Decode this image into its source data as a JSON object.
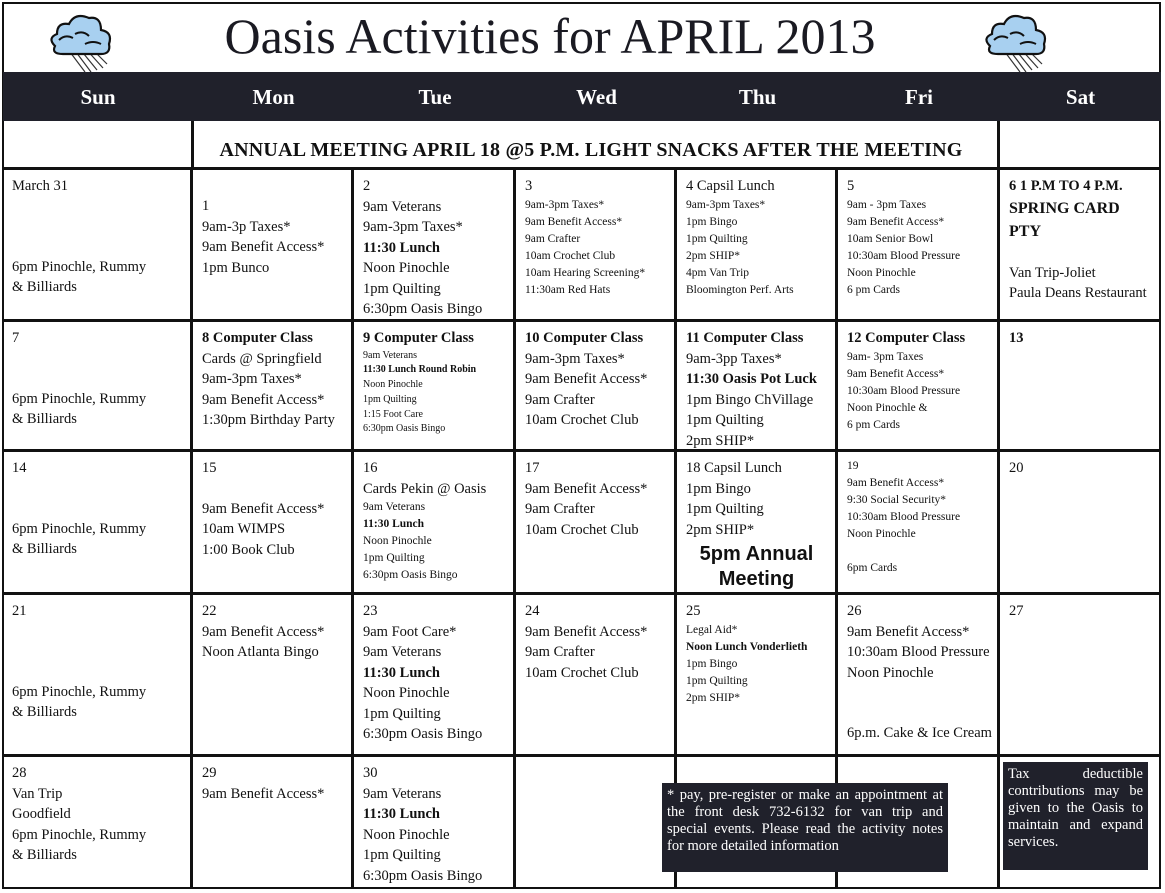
{
  "title": "Oasis Activities for APRIL 2013",
  "icons": {
    "left": "rain-cloud-icon",
    "right": "rain-cloud-icon",
    "cloud_color": "#a8d0f0"
  },
  "days": [
    "Sun",
    "Mon",
    "Tue",
    "Wed",
    "Thu",
    "Fri",
    "Sat"
  ],
  "banner": "ANNUAL MEETING  APRIL 18  @5 P.M. LIGHT SNACKS AFTER THE MEETING",
  "weeks": [
    [
      [
        "March 31",
        "",
        "",
        "",
        "6pm Pinochle, Rummy",
        "& Billiards"
      ],
      [
        "",
        "1",
        "9am-3p Taxes*",
        "9am Benefit Access*",
        "1pm Bunco"
      ],
      [
        "2",
        "9am Veterans",
        "9am-3pm Taxes*",
        {
          "text": "11:30 Lunch",
          "bold": true
        },
        "Noon Pinochle",
        "1pm Quilting",
        "6:30pm Oasis Bingo"
      ],
      [
        "3",
        "9am-3pm Taxes*",
        "9am Benefit Access*",
        "9am Crafter",
        "10am Crochet Club",
        "10am Hearing Screening*",
        "11:30am Red Hats"
      ],
      [
        "4 Capsil Lunch",
        "9am-3pm Taxes*",
        "1pm Bingo",
        "1pm Quilting",
        "2pm SHIP*",
        "4pm Van Trip",
        "Bloomington Perf. Arts"
      ],
      [
        "5",
        "9am - 3pm Taxes",
        "9am Benefit Access*",
        "10am Senior Bowl",
        "10:30am Blood Pressure",
        "Noon Pinochle",
        "6 pm Cards"
      ],
      [
        {
          "text": "6    1 P.M TO 4 P.M.",
          "bold": true
        },
        {
          "text": "SPRING CARD",
          "bold": true
        },
        {
          "text": "PTY",
          "bold": true
        },
        "",
        "Van Trip-Joliet",
        "Paula Deans Restaurant"
      ]
    ],
    [
      [
        "7",
        "",
        "",
        "6pm Pinochle, Rummy",
        "& Billiards"
      ],
      [
        {
          "text": "8     Computer Class",
          "bold": true
        },
        "Cards @ Springfield",
        "9am-3pm Taxes*",
        "9am Benefit Access*",
        "1:30pm Birthday Party"
      ],
      [
        {
          "text": "9    Computer Class",
          "bold": true
        },
        "9am Veterans",
        {
          "text": "11:30 Lunch Round Robin",
          "bold": true
        },
        "Noon Pinochle",
        "1pm Quilting",
        "1:15 Foot Care",
        "6:30pm Oasis Bingo"
      ],
      [
        {
          "text": "10    Computer Class",
          "bold": true
        },
        "9am-3pm Taxes*",
        "9am Benefit Access*",
        "9am Crafter",
        "10am Crochet Club"
      ],
      [
        {
          "text": "11   Computer Class",
          "bold": true
        },
        "9am-3pp Taxes*",
        {
          "text": "11:30 Oasis Pot Luck",
          "bold": true
        },
        "1pm Bingo ChVillage",
        "1pm Quilting",
        "2pm SHIP*"
      ],
      [
        {
          "text": "12   Computer Class",
          "bold": true
        },
        "9am- 3pm Taxes",
        "9am Benefit Access*",
        "10:30am Blood Pressure",
        "Noon Pinochle  &",
        "6 pm Cards"
      ],
      [
        {
          "text": "13",
          "bold": true
        }
      ]
    ],
    [
      [
        "14",
        "",
        "",
        "6pm Pinochle, Rummy",
        "& Billiards"
      ],
      [
        "15",
        "",
        "9am Benefit Access*",
        "10am WIMPS",
        "1:00 Book Club"
      ],
      [
        "16",
        "Cards  Pekin @ Oasis",
        "9am Veterans",
        {
          "text": "11:30 Lunch",
          "bold": true
        },
        "Noon Pinochle",
        "1pm Quilting",
        "6:30pm Oasis Bingo"
      ],
      [
        "17",
        "9am Benefit Access*",
        "9am Crafter",
        "10am Crochet Club"
      ],
      [
        "18      Capsil Lunch",
        "1pm Bingo",
        "1pm Quilting",
        "2pm SHIP*",
        {
          "text": "5pm Annual Meeting",
          "highlight": true
        }
      ],
      [
        "19",
        "9am Benefit Access*",
        "9:30 Social Security*",
        "10:30am Blood Pressure",
        "Noon Pinochle",
        "",
        "6pm Cards"
      ],
      [
        "20"
      ]
    ],
    [
      [
        "21",
        "",
        "",
        "",
        "6pm Pinochle, Rummy",
        "& Billiards"
      ],
      [
        "22",
        "9am Benefit Access*",
        "Noon Atlanta Bingo"
      ],
      [
        "23",
        "9am Foot Care*",
        "9am Veterans",
        {
          "text": "11:30 Lunch",
          "bold": true
        },
        "Noon Pinochle",
        "1pm Quilting",
        "6:30pm Oasis Bingo"
      ],
      [
        "24",
        "9am Benefit Access*",
        "9am Crafter",
        "10am Crochet Club"
      ],
      [
        "25",
        "Legal Aid*",
        {
          "text": "Noon  Lunch Vonderlieth",
          "bold": true
        },
        "1pm Bingo",
        "1pm Quilting",
        "2pm SHIP*"
      ],
      [
        "26",
        "9am Benefit Access*",
        "10:30am Blood Pressure",
        "Noon Pinochle",
        "",
        "",
        "6p.m. Cake & Ice Cream"
      ],
      [
        "27"
      ]
    ],
    [
      [
        "28",
        "Van Trip",
        "Goodfield",
        "6pm Pinochle, Rummy",
        "& Billiards"
      ],
      [
        "29",
        "9am Benefit Access*"
      ],
      [
        "30",
        "9am Veterans",
        {
          "text": "11:30 Lunch",
          "bold": true
        },
        "Noon Pinochle",
        "1pm Quilting",
        "6:30pm Oasis Bingo"
      ],
      [],
      [],
      [],
      []
    ]
  ],
  "notes": {
    "register": "* pay, pre-register or make an appointment at the front desk 732-6132 for van trip and special events.  Please read the activity notes for more detailed     information",
    "tax": "Tax deductible contributions may be given to the Oasis to maintain and expand services."
  }
}
